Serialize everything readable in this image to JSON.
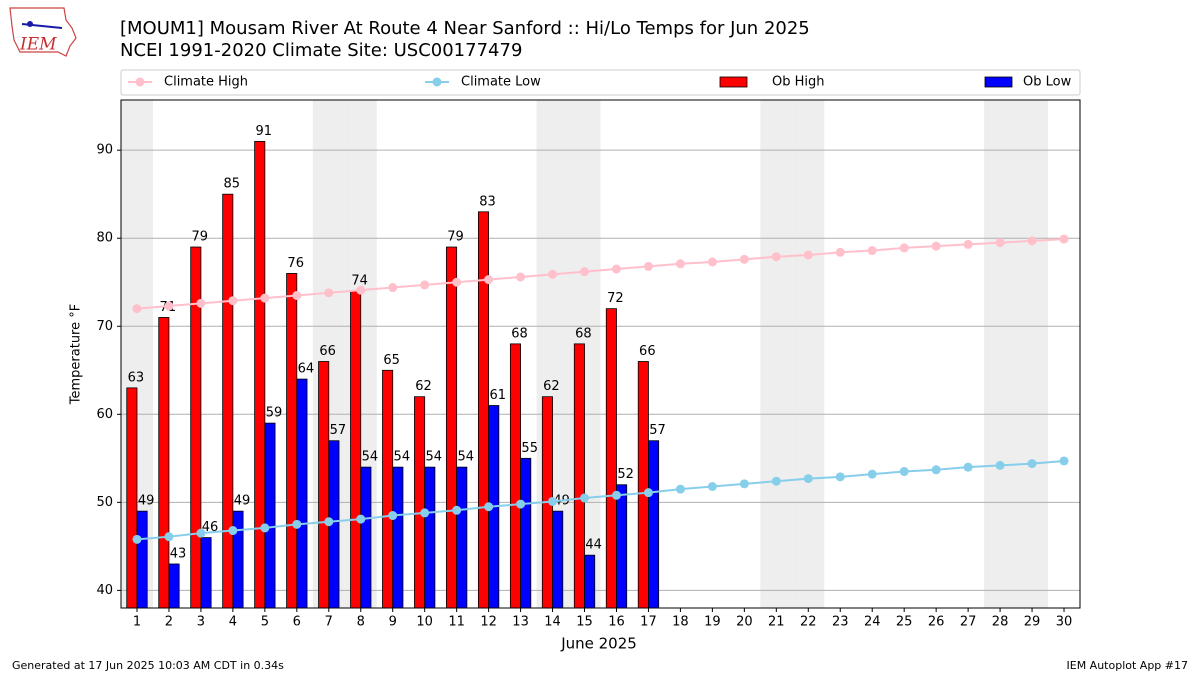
{
  "chart_data": {
    "type": "bar",
    "title": "[MOUM1] Mousam River At Route 4 Near Sanford :: Hi/Lo Temps for Jun 2025",
    "subtitle": "NCEI 1991-2020 Climate Site: USC00177479",
    "logo_text": "IEM",
    "x_label": "June 2025",
    "y_label": "Temperature °F",
    "footer_left": "Generated at 17 Jun 2025 10:03 AM CDT in 0.34s",
    "footer_right": "IEM Autoplot App #17",
    "x": [
      1,
      2,
      3,
      4,
      5,
      6,
      7,
      8,
      9,
      10,
      11,
      12,
      13,
      14,
      15,
      16,
      17,
      18,
      19,
      20,
      21,
      22,
      23,
      24,
      25,
      26,
      27,
      28,
      29,
      30
    ],
    "xlim": [
      0.5,
      30.5
    ],
    "ylim": [
      38,
      95.7
    ],
    "yticks": [
      40,
      50,
      60,
      70,
      80,
      90
    ],
    "grid": true,
    "shaded_days": [
      1,
      7,
      8,
      14,
      15,
      21,
      22,
      28,
      29
    ],
    "series": [
      {
        "name": "Climate High",
        "kind": "line",
        "color": "#ffc0cb",
        "values": [
          72.0,
          72.3,
          72.6,
          72.9,
          73.2,
          73.5,
          73.8,
          74.1,
          74.4,
          74.7,
          75.0,
          75.3,
          75.6,
          75.9,
          76.2,
          76.5,
          76.8,
          77.1,
          77.3,
          77.6,
          77.9,
          78.1,
          78.4,
          78.6,
          78.9,
          79.1,
          79.3,
          79.5,
          79.7,
          79.9
        ]
      },
      {
        "name": "Climate Low",
        "kind": "line",
        "color": "#87ceeb",
        "values": [
          45.8,
          46.1,
          46.5,
          46.8,
          47.1,
          47.5,
          47.8,
          48.1,
          48.5,
          48.8,
          49.1,
          49.5,
          49.8,
          50.1,
          50.5,
          50.8,
          51.1,
          51.5,
          51.8,
          52.1,
          52.4,
          52.7,
          52.9,
          53.2,
          53.5,
          53.7,
          54.0,
          54.2,
          54.4,
          54.7
        ]
      },
      {
        "name": "Ob High",
        "kind": "bar",
        "color": "#ff0000",
        "values": [
          63,
          71,
          79,
          85,
          91,
          76,
          66,
          74,
          65,
          62,
          79,
          83,
          68,
          62,
          68,
          72,
          66,
          null,
          null,
          null,
          null,
          null,
          null,
          null,
          null,
          null,
          null,
          null,
          null,
          null
        ]
      },
      {
        "name": "Ob Low",
        "kind": "bar",
        "color": "#0000ff",
        "values": [
          49,
          43,
          46,
          49,
          59,
          64,
          57,
          54,
          54,
          54,
          54,
          61,
          55,
          49,
          44,
          52,
          57,
          null,
          null,
          null,
          null,
          null,
          null,
          null,
          null,
          null,
          null,
          null,
          null,
          null
        ]
      }
    ]
  }
}
